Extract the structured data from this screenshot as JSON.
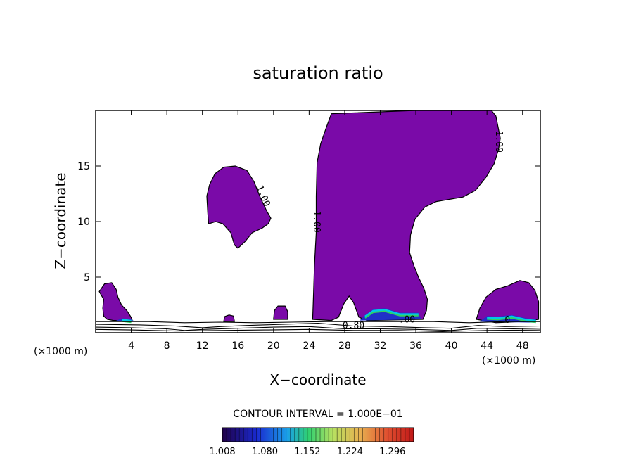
{
  "chart_data": {
    "type": "contour",
    "title": "saturation ratio",
    "xlabel": "X−coordinate",
    "ylabel": "Z−coordinate",
    "x_unit_left": "(×1000 m)",
    "x_unit_right": "(×1000 m)",
    "xlim": [
      0,
      50
    ],
    "ylim": [
      0,
      20
    ],
    "xticks": [
      4,
      8,
      12,
      16,
      20,
      24,
      28,
      32,
      36,
      40,
      44,
      48
    ],
    "yticks": [
      5,
      10,
      15
    ],
    "contour_interval_text": "CONTOUR INTERVAL = 1.000E−01",
    "colorbar": {
      "range": [
        1.008,
        1.332
      ],
      "tick_labels": [
        "1.008",
        "1.080",
        "1.152",
        "1.224",
        "1.296"
      ]
    },
    "contour_labels": [
      {
        "text": "1.00",
        "x": 18.8,
        "y": 12.3,
        "rotate": 68
      },
      {
        "text": "1.00",
        "x": 24.8,
        "y": 10.0,
        "rotate": 90
      },
      {
        "text": "1.00",
        "x": 45.3,
        "y": 17.2,
        "rotate": 90
      },
      {
        "text": "0.80",
        "x": 29.0,
        "y": 0.6,
        "rotate": 0
      },
      {
        "text": ".00",
        "x": 35.0,
        "y": 1.15,
        "rotate": 0
      },
      {
        "text": "0",
        "x": 46.3,
        "y": 1.1,
        "rotate": 0
      }
    ],
    "colors": {
      "supersaturated_fill": "#7a0aa8",
      "base_band": "#2030c8",
      "cyan_band": "#00c8e8",
      "green_band": "#30d060"
    },
    "regions": [
      {
        "name": "low-left-cloud",
        "points": [
          [
            0.4,
            3.7
          ],
          [
            1.0,
            4.4
          ],
          [
            1.8,
            4.5
          ],
          [
            2.3,
            3.9
          ],
          [
            2.5,
            3.2
          ],
          [
            2.9,
            2.5
          ],
          [
            3.5,
            2.0
          ],
          [
            3.9,
            1.5
          ],
          [
            4.1,
            1.2
          ],
          [
            3.6,
            1.1
          ],
          [
            2.0,
            1.1
          ],
          [
            1.3,
            1.2
          ],
          [
            0.9,
            1.5
          ],
          [
            0.8,
            2.2
          ],
          [
            0.9,
            3.0
          ]
        ]
      },
      {
        "name": "mid-level-cloud",
        "points": [
          [
            12.8,
            13.3
          ],
          [
            13.4,
            14.3
          ],
          [
            14.4,
            14.9
          ],
          [
            15.7,
            15.0
          ],
          [
            17.0,
            14.6
          ],
          [
            17.8,
            13.6
          ],
          [
            18.5,
            12.2
          ],
          [
            19.2,
            11.0
          ],
          [
            19.7,
            10.3
          ],
          [
            19.4,
            9.8
          ],
          [
            18.7,
            9.4
          ],
          [
            17.6,
            9.0
          ],
          [
            16.8,
            8.2
          ],
          [
            16.0,
            7.6
          ],
          [
            15.6,
            7.9
          ],
          [
            15.2,
            9.0
          ],
          [
            14.3,
            9.8
          ],
          [
            13.5,
            10.0
          ],
          [
            12.7,
            9.8
          ],
          [
            12.6,
            10.8
          ],
          [
            12.5,
            12.3
          ]
        ]
      },
      {
        "name": "small-cloud-20km",
        "points": [
          [
            20.0,
            1.2
          ],
          [
            20.1,
            2.0
          ],
          [
            20.5,
            2.4
          ],
          [
            21.3,
            2.4
          ],
          [
            21.6,
            1.9
          ],
          [
            21.6,
            1.2
          ]
        ]
      },
      {
        "name": "small-cloud-15km",
        "points": [
          [
            14.4,
            1.0
          ],
          [
            14.5,
            1.45
          ],
          [
            15.0,
            1.6
          ],
          [
            15.5,
            1.5
          ],
          [
            15.6,
            1.0
          ]
        ]
      },
      {
        "name": "anvil-cloud",
        "points": [
          [
            24.4,
            1.2
          ],
          [
            24.5,
            3.6
          ],
          [
            24.6,
            6.0
          ],
          [
            24.8,
            9.0
          ],
          [
            24.8,
            12.3
          ],
          [
            24.9,
            15.3
          ],
          [
            25.3,
            17.0
          ],
          [
            25.9,
            18.4
          ],
          [
            26.5,
            19.7
          ],
          [
            36.0,
            20.0
          ],
          [
            44.5,
            20.0
          ],
          [
            45.0,
            19.5
          ],
          [
            45.5,
            17.5
          ],
          [
            45.3,
            16.5
          ],
          [
            44.8,
            15.2
          ],
          [
            43.9,
            14.0
          ],
          [
            42.7,
            12.8
          ],
          [
            41.3,
            12.2
          ],
          [
            39.8,
            12.0
          ],
          [
            38.3,
            11.8
          ],
          [
            37.0,
            11.3
          ],
          [
            35.9,
            10.2
          ],
          [
            35.4,
            8.8
          ],
          [
            35.3,
            7.2
          ],
          [
            35.8,
            6.0
          ],
          [
            36.3,
            5.0
          ],
          [
            36.9,
            4.0
          ],
          [
            37.3,
            3.0
          ],
          [
            37.2,
            2.0
          ],
          [
            36.8,
            1.2
          ],
          [
            30.5,
            1.1
          ],
          [
            29.6,
            1.4
          ],
          [
            29.0,
            2.7
          ],
          [
            28.5,
            3.3
          ],
          [
            27.9,
            2.6
          ],
          [
            27.3,
            1.4
          ],
          [
            26.5,
            1.1
          ]
        ]
      },
      {
        "name": "low-right-cloud",
        "points": [
          [
            42.8,
            1.2
          ],
          [
            43.2,
            2.2
          ],
          [
            43.9,
            3.2
          ],
          [
            45.0,
            3.9
          ],
          [
            46.3,
            4.2
          ],
          [
            47.7,
            4.7
          ],
          [
            48.7,
            4.5
          ],
          [
            49.4,
            3.8
          ],
          [
            49.8,
            2.8
          ],
          [
            49.8,
            1.2
          ],
          [
            48.0,
            1.0
          ],
          [
            45.0,
            0.9
          ]
        ]
      }
    ],
    "colored_bands": [
      {
        "name": "band-30-36",
        "points": [
          [
            29.7,
            1.1
          ],
          [
            30.3,
            1.6
          ],
          [
            31.2,
            2.1
          ],
          [
            32.5,
            2.2
          ],
          [
            34.2,
            1.8
          ],
          [
            36.3,
            1.8
          ],
          [
            36.6,
            1.2
          ]
        ]
      },
      {
        "name": "band-44-49",
        "points": [
          [
            43.2,
            1.0
          ],
          [
            44.0,
            1.5
          ],
          [
            45.2,
            1.45
          ],
          [
            46.8,
            1.6
          ],
          [
            48.4,
            1.3
          ],
          [
            49.5,
            1.2
          ],
          [
            49.5,
            0.9
          ]
        ]
      },
      {
        "name": "band-2-4",
        "points": [
          [
            2.2,
            1.05
          ],
          [
            3.0,
            1.3
          ],
          [
            4.0,
            1.2
          ],
          [
            4.3,
            1.05
          ]
        ]
      }
    ],
    "lower_contours": [
      {
        "name": "isoline-a",
        "points": [
          [
            0,
            1.0
          ],
          [
            6,
            1.0
          ],
          [
            10,
            0.9
          ],
          [
            14,
            0.95
          ],
          [
            18,
            0.9
          ],
          [
            22,
            0.95
          ],
          [
            26,
            1.0
          ],
          [
            30,
            1.0
          ],
          [
            34,
            1.0
          ],
          [
            38,
            1.0
          ],
          [
            42,
            0.9
          ],
          [
            46,
            1.0
          ],
          [
            50,
            1.0
          ]
        ]
      },
      {
        "name": "isoline-b",
        "points": [
          [
            0,
            0.75
          ],
          [
            5,
            0.7
          ],
          [
            9,
            0.6
          ],
          [
            12,
            0.45
          ],
          [
            14,
            0.55
          ],
          [
            17,
            0.65
          ],
          [
            21,
            0.75
          ],
          [
            25,
            0.85
          ],
          [
            29,
            0.6
          ],
          [
            33,
            0.55
          ],
          [
            37,
            0.45
          ],
          [
            40,
            0.4
          ],
          [
            43,
            0.65
          ],
          [
            46,
            0.55
          ],
          [
            50,
            0.6
          ]
        ]
      },
      {
        "name": "isoline-c",
        "points": [
          [
            0,
            0.5
          ],
          [
            4,
            0.45
          ],
          [
            8,
            0.35
          ],
          [
            10,
            0.2
          ],
          [
            12,
            0.3
          ],
          [
            16,
            0.4
          ],
          [
            20,
            0.5
          ],
          [
            24,
            0.55
          ],
          [
            28,
            0.35
          ],
          [
            32,
            0.35
          ],
          [
            36,
            0.3
          ],
          [
            40,
            0.2
          ],
          [
            43,
            0.4
          ],
          [
            47,
            0.35
          ],
          [
            50,
            0.4
          ]
        ]
      },
      {
        "name": "isoline-d",
        "points": [
          [
            0,
            0.3
          ],
          [
            4,
            0.25
          ],
          [
            9,
            0.15
          ],
          [
            14,
            0.2
          ],
          [
            19,
            0.25
          ],
          [
            24,
            0.3
          ],
          [
            29,
            0.2
          ],
          [
            34,
            0.2
          ],
          [
            39,
            0.1
          ],
          [
            44,
            0.2
          ],
          [
            50,
            0.25
          ]
        ]
      }
    ]
  }
}
